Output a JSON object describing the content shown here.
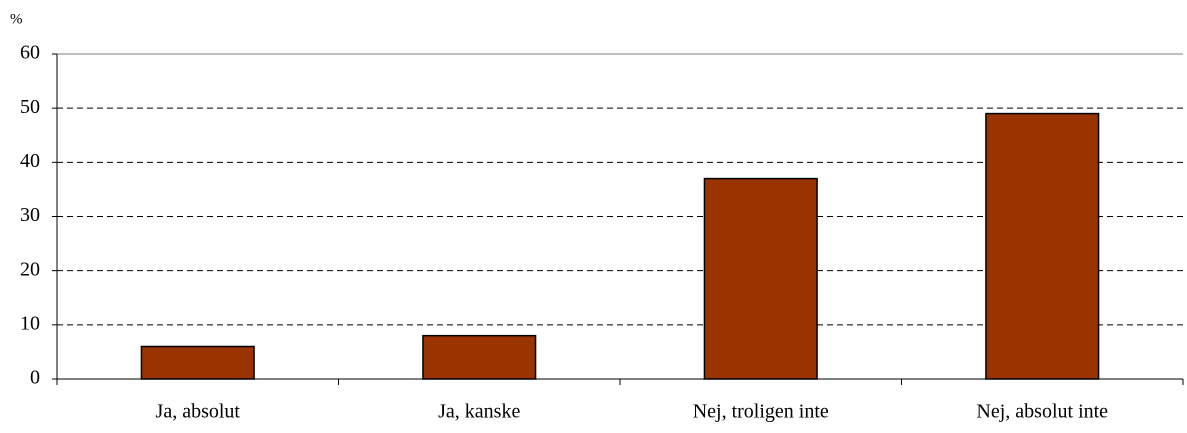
{
  "chart_data": {
    "type": "bar",
    "y_label": "%",
    "categories": [
      "Ja, absolut",
      "Ja, kanske",
      "Nej, troligen inte",
      "Nej, absolut inte"
    ],
    "values": [
      6,
      8,
      37,
      49
    ],
    "color": "#993300",
    "ylim": [
      0,
      60
    ],
    "yticks": [
      0,
      10,
      20,
      30,
      40,
      50,
      60
    ],
    "grid": true
  }
}
